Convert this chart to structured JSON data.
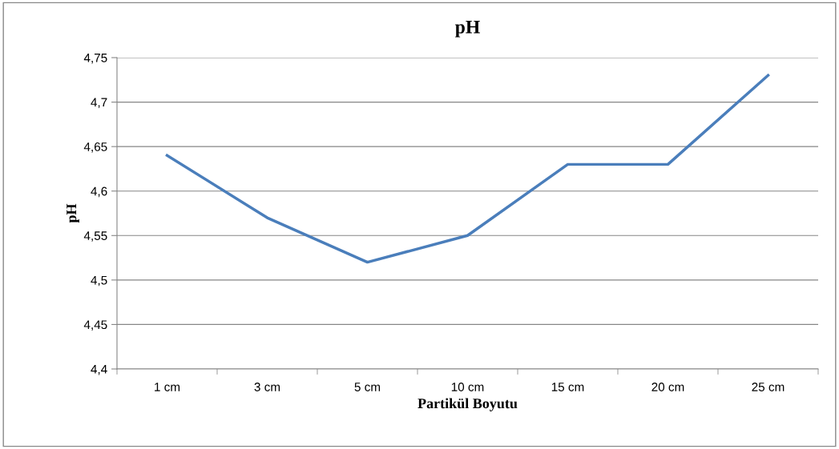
{
  "chart_data": {
    "type": "line",
    "title": "pH",
    "xlabel": "Partikül Boyutu",
    "ylabel": "pH",
    "categories": [
      "1 cm",
      "3 cm",
      "5 cm",
      "10 cm",
      "15 cm",
      "20 cm",
      "25 cm"
    ],
    "series": [
      {
        "color": "#4a7ebb",
        "values": [
          4.64,
          4.57,
          4.52,
          4.55,
          4.63,
          4.63,
          4.73
        ]
      }
    ],
    "ylim": [
      4.4,
      4.75
    ],
    "yticks": [
      {
        "value": 4.4,
        "label": "4,4"
      },
      {
        "value": 4.45,
        "label": "4,45"
      },
      {
        "value": 4.5,
        "label": "4,5"
      },
      {
        "value": 4.55,
        "label": "4,55"
      },
      {
        "value": 4.6,
        "label": "4,6"
      },
      {
        "value": 4.65,
        "label": "4,65"
      },
      {
        "value": 4.7,
        "label": "4,7"
      },
      {
        "value": 4.75,
        "label": "4,75"
      }
    ],
    "grid": "y",
    "marker": "none",
    "line_style": "solid"
  }
}
